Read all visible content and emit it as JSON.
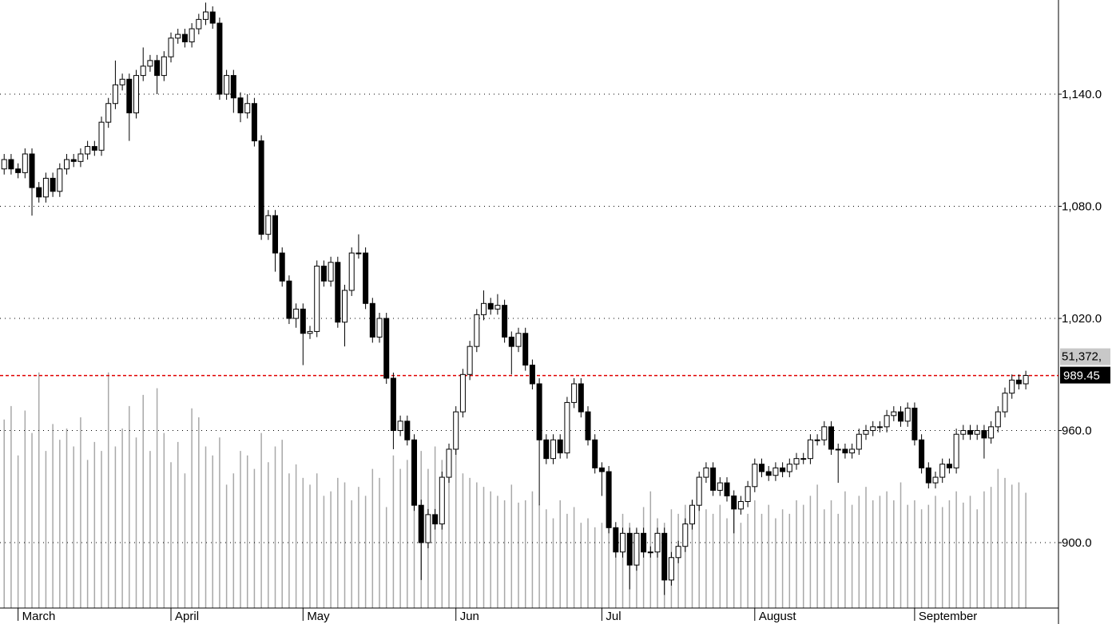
{
  "chart_data": {
    "type": "candlestick",
    "xlim": [
      -0.6,
      151.7
    ],
    "xticks": [
      {
        "value": 2,
        "label": "March"
      },
      {
        "value": 24,
        "label": "April"
      },
      {
        "value": 43,
        "label": "May"
      },
      {
        "value": 65,
        "label": "Jun"
      },
      {
        "value": 86,
        "label": "Jul"
      },
      {
        "value": 108,
        "label": "August"
      },
      {
        "value": 131,
        "label": "September"
      }
    ],
    "ylim": [
      865,
      1190.4
    ],
    "yticks": [
      {
        "value": 900,
        "label": "900.0"
      },
      {
        "value": 960,
        "label": "960.0"
      },
      {
        "value": 1020,
        "label": "1,020.0"
      },
      {
        "value": 1080,
        "label": "1,080.0"
      },
      {
        "value": 1140,
        "label": "1,140.0"
      }
    ],
    "y2lim": [
      0,
      271000
    ],
    "grid": true,
    "up_color": "#ffffff",
    "down_color": "#000000",
    "volume_color": "#a8a8a8",
    "price_line_color": "#e00000",
    "open": [
      1100,
      1105,
      1100,
      1098,
      1108,
      1090,
      1085,
      1095,
      1088,
      1100,
      1105,
      1104,
      1108,
      1112,
      1110,
      1125,
      1135,
      1145,
      1148,
      1130,
      1150,
      1155,
      1158,
      1150,
      1160,
      1170,
      1172,
      1168,
      1175,
      1180,
      1184,
      1178,
      1140,
      1150,
      1138,
      1130,
      1135,
      1115,
      1065,
      1075,
      1055,
      1040,
      1020,
      1025,
      1012,
      1013,
      1048,
      1040,
      1050,
      1018,
      1035,
      1055,
      1055,
      1028,
      1010,
      1020,
      988,
      960,
      965,
      955,
      920,
      900,
      915,
      910,
      935,
      950,
      970,
      990,
      1005,
      1022,
      1028,
      1025,
      1027,
      1010,
      1005,
      1012,
      995,
      985,
      955,
      945,
      955,
      948,
      975,
      985,
      970,
      955,
      940,
      938,
      908,
      895,
      905,
      888,
      905,
      895,
      895,
      905,
      880,
      892,
      898,
      910,
      920,
      935,
      940,
      928,
      932,
      925,
      918,
      922,
      930,
      942,
      938,
      936,
      940,
      938,
      942,
      945,
      945,
      955,
      955,
      962,
      950,
      950,
      948,
      950,
      958,
      960,
      962,
      962,
      968,
      970,
      965,
      972,
      955,
      940,
      932,
      935,
      942,
      940,
      958,
      960,
      958,
      960,
      956,
      962,
      970,
      980,
      987,
      985
    ],
    "high": [
      1108,
      1108,
      1103,
      1111,
      1111,
      1093,
      1098,
      1098,
      1103,
      1108,
      1108,
      1111,
      1115,
      1115,
      1128,
      1138,
      1158,
      1151,
      1151,
      1153,
      1165,
      1161,
      1161,
      1163,
      1173,
      1175,
      1175,
      1178,
      1183,
      1189,
      1187,
      1181,
      1153,
      1153,
      1141,
      1140,
      1138,
      1118,
      1078,
      1078,
      1058,
      1043,
      1028,
      1028,
      1016,
      1051,
      1051,
      1053,
      1053,
      1038,
      1058,
      1065,
      1058,
      1031,
      1023,
      1023,
      991,
      968,
      968,
      958,
      923,
      918,
      918,
      938,
      953,
      973,
      993,
      1008,
      1025,
      1035,
      1031,
      1033,
      1030,
      1013,
      1015,
      1015,
      998,
      988,
      958,
      958,
      958,
      978,
      988,
      988,
      973,
      958,
      943,
      941,
      911,
      908,
      908,
      908,
      908,
      898,
      908,
      908,
      895,
      901,
      913,
      923,
      938,
      943,
      943,
      935,
      935,
      928,
      925,
      933,
      945,
      945,
      941,
      943,
      943,
      945,
      948,
      948,
      958,
      958,
      965,
      965,
      953,
      953,
      953,
      961,
      963,
      965,
      965,
      971,
      973,
      973,
      975,
      975,
      958,
      943,
      938,
      945,
      945,
      961,
      963,
      963,
      963,
      963,
      965,
      973,
      983,
      990,
      990,
      992
    ],
    "low": [
      1097,
      1097,
      1095,
      1095,
      1075,
      1082,
      1082,
      1085,
      1085,
      1097,
      1101,
      1101,
      1105,
      1107,
      1107,
      1122,
      1132,
      1142,
      1115,
      1127,
      1147,
      1152,
      1140,
      1147,
      1157,
      1167,
      1165,
      1165,
      1172,
      1177,
      1175,
      1137,
      1137,
      1130,
      1125,
      1127,
      1112,
      1062,
      1062,
      1045,
      1037,
      1017,
      1015,
      995,
      1009,
      1010,
      1037,
      1037,
      1015,
      1005,
      1032,
      1052,
      1025,
      1007,
      1007,
      985,
      950,
      957,
      952,
      917,
      880,
      897,
      907,
      907,
      932,
      947,
      967,
      987,
      1002,
      1019,
      1022,
      1022,
      1007,
      990,
      1002,
      992,
      982,
      920,
      942,
      942,
      945,
      945,
      972,
      967,
      952,
      937,
      925,
      905,
      892,
      892,
      875,
      885,
      892,
      892,
      892,
      872,
      877,
      889,
      895,
      907,
      917,
      932,
      925,
      925,
      922,
      905,
      915,
      919,
      927,
      935,
      933,
      933,
      935,
      935,
      939,
      942,
      942,
      952,
      952,
      947,
      932,
      945,
      945,
      947,
      955,
      957,
      959,
      959,
      965,
      962,
      962,
      952,
      937,
      929,
      929,
      932,
      937,
      937,
      955,
      955,
      955,
      945,
      953,
      959,
      967,
      977,
      982,
      982
    ],
    "close": [
      1105,
      1100,
      1098,
      1108,
      1090,
      1085,
      1095,
      1088,
      1100,
      1105,
      1104,
      1108,
      1112,
      1110,
      1125,
      1135,
      1145,
      1148,
      1130,
      1150,
      1155,
      1158,
      1150,
      1160,
      1170,
      1172,
      1168,
      1175,
      1180,
      1184,
      1178,
      1140,
      1150,
      1138,
      1130,
      1135,
      1115,
      1065,
      1075,
      1055,
      1040,
      1020,
      1025,
      1012,
      1013,
      1048,
      1040,
      1050,
      1018,
      1035,
      1055,
      1055,
      1028,
      1010,
      1020,
      988,
      960,
      965,
      955,
      920,
      900,
      915,
      910,
      935,
      950,
      970,
      990,
      1005,
      1022,
      1028,
      1025,
      1027,
      1010,
      1005,
      1012,
      995,
      985,
      955,
      945,
      955,
      948,
      975,
      985,
      970,
      955,
      940,
      938,
      908,
      895,
      905,
      888,
      905,
      895,
      895,
      905,
      880,
      892,
      898,
      910,
      920,
      935,
      940,
      928,
      932,
      925,
      918,
      922,
      930,
      942,
      938,
      936,
      940,
      938,
      942,
      945,
      945,
      955,
      955,
      962,
      950,
      950,
      948,
      950,
      958,
      960,
      962,
      962,
      968,
      970,
      965,
      972,
      955,
      940,
      932,
      935,
      942,
      940,
      958,
      960,
      958,
      960,
      956,
      962,
      970,
      980,
      987,
      985,
      989.45
    ],
    "volume": [
      84000,
      90000,
      68000,
      88000,
      78000,
      105000,
      70000,
      82000,
      75000,
      80000,
      72000,
      85000,
      66000,
      74000,
      70000,
      105000,
      72000,
      80000,
      90000,
      76000,
      95000,
      70000,
      98000,
      78000,
      65000,
      74000,
      60000,
      89000,
      85000,
      72000,
      68000,
      76000,
      55000,
      60000,
      70000,
      68000,
      62000,
      78000,
      65000,
      72000,
      75000,
      60000,
      64000,
      58000,
      55000,
      60000,
      50000,
      52000,
      58000,
      56000,
      48000,
      54000,
      50000,
      62000,
      58000,
      45000,
      68000,
      62000,
      66000,
      60000,
      70000,
      62000,
      72000,
      66000,
      58000,
      80000,
      60000,
      58000,
      56000,
      54000,
      52000,
      50000,
      48000,
      55000,
      47000,
      48000,
      52000,
      46000,
      44000,
      40000,
      48000,
      42000,
      45000,
      38000,
      40000,
      36000,
      38000,
      40000,
      36000,
      42000,
      38000,
      35000,
      45000,
      52000,
      40000,
      38000,
      44000,
      42000,
      46000,
      48000,
      50000,
      44000,
      42000,
      46000,
      40000,
      44000,
      38000,
      42000,
      48000,
      42000,
      46000,
      40000,
      44000,
      42000,
      48000,
      46000,
      50000,
      55000,
      44000,
      48000,
      42000,
      52000,
      46000,
      50000,
      54000,
      48000,
      50000,
      52000,
      48000,
      56000,
      46000,
      48000,
      44000,
      46000,
      50000,
      45000,
      48000,
      52000,
      47000,
      50000,
      44000,
      52000,
      54000,
      62000,
      58000,
      55000,
      56000,
      51372
    ],
    "last_price": 989.45,
    "volume_marker": {
      "value": 51372,
      "label": "51,372,"
    }
  }
}
